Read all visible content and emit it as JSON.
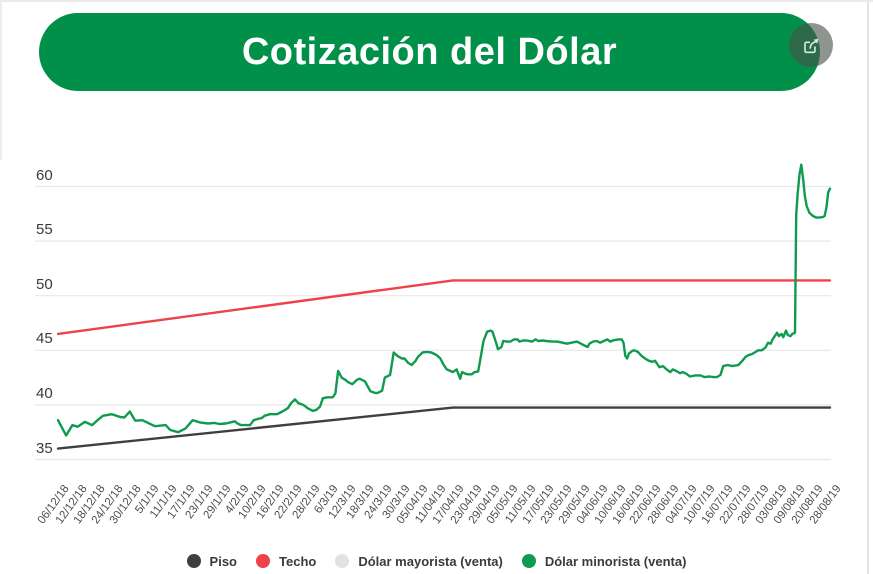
{
  "header": {
    "title": "Cotización del Dólar",
    "banner_color": "#00904A",
    "title_color": "#FFFFFF",
    "share_icon": "share-export"
  },
  "chart_data": {
    "type": "line",
    "title": "Cotización del Dólar",
    "xlabel": "",
    "ylabel": "",
    "ylim": [
      33.5,
      63
    ],
    "yticks": [
      35,
      40,
      45,
      50,
      55,
      60
    ],
    "grid": true,
    "legend_position": "bottom",
    "gridline_color": "#e7e7e7",
    "x_labels": [
      "06/12/18",
      "12/12/18",
      "18/12/18",
      "24/12/18",
      "30/12/18",
      "5/1/19",
      "11/1/19",
      "17/1/19",
      "23/1/19",
      "29/1/19",
      "4/2/19",
      "10/2/19",
      "16/2/19",
      "22/2/19",
      "28/2/19",
      "6/3/19",
      "12/3/19",
      "18/3/19",
      "24/3/19",
      "30/3/19",
      "05/04/19",
      "11/04/19",
      "17/04/19",
      "23/04/19",
      "29/04/19",
      "05/05/19",
      "11/05/19",
      "17/05/19",
      "23/05/19",
      "29/05/19",
      "04/06/19",
      "10/06/19",
      "16/06/19",
      "22/06/19",
      "28/06/19",
      "04/07/19",
      "10/07/19",
      "16/07/19",
      "22/07/19",
      "28/07/19",
      "03/08/19",
      "09/08/19",
      "20/08/19",
      "28/08/19"
    ],
    "series": [
      {
        "key": "piso",
        "name": "Piso",
        "color": "#3F3F3F",
        "points": [
          [
            0,
            36.0
          ],
          [
            22,
            39.75
          ],
          [
            43,
            39.75
          ]
        ]
      },
      {
        "key": "techo",
        "name": "Techo",
        "color": "#EE4149",
        "points": [
          [
            0,
            46.5
          ],
          [
            22,
            51.4
          ],
          [
            43,
            51.4
          ]
        ]
      },
      {
        "key": "mayorista",
        "name": "Dólar mayorista (venta)",
        "color": "#E2E2E2",
        "points": []
      },
      {
        "key": "minorista",
        "name": "Dólar minorista (venta)",
        "color": "#0F9B4E",
        "points": [
          [
            0,
            38.6
          ],
          [
            0.45,
            37.2
          ],
          [
            0.8,
            38.15
          ],
          [
            1.1,
            38.0
          ],
          [
            1.5,
            38.45
          ],
          [
            1.9,
            38.15
          ],
          [
            2.2,
            38.6
          ],
          [
            2.5,
            39.0
          ],
          [
            3.0,
            39.15
          ],
          [
            3.45,
            38.9
          ],
          [
            3.7,
            38.85
          ],
          [
            4.0,
            39.4
          ],
          [
            4.3,
            38.55
          ],
          [
            4.7,
            38.6
          ],
          [
            5.4,
            38.05
          ],
          [
            6.0,
            38.15
          ],
          [
            6.25,
            37.7
          ],
          [
            6.7,
            37.5
          ],
          [
            7.1,
            37.85
          ],
          [
            7.5,
            38.6
          ],
          [
            7.9,
            38.4
          ],
          [
            8.35,
            38.3
          ],
          [
            8.7,
            38.35
          ],
          [
            9.0,
            38.25
          ],
          [
            9.35,
            38.3
          ],
          [
            9.85,
            38.5
          ],
          [
            10.0,
            38.3
          ],
          [
            10.2,
            38.15
          ],
          [
            10.7,
            38.15
          ],
          [
            10.9,
            38.6
          ],
          [
            11.1,
            38.7
          ],
          [
            11.35,
            38.8
          ],
          [
            11.5,
            39.0
          ],
          [
            11.8,
            39.15
          ],
          [
            12.2,
            39.15
          ],
          [
            12.5,
            39.4
          ],
          [
            12.8,
            39.7
          ],
          [
            13.0,
            40.2
          ],
          [
            13.2,
            40.5
          ],
          [
            13.4,
            40.15
          ],
          [
            13.6,
            40.05
          ],
          [
            13.75,
            39.9
          ],
          [
            13.9,
            39.7
          ],
          [
            14.2,
            39.45
          ],
          [
            14.4,
            39.55
          ],
          [
            14.6,
            39.85
          ],
          [
            14.75,
            40.6
          ],
          [
            15.0,
            40.7
          ],
          [
            15.3,
            40.7
          ],
          [
            15.45,
            41.05
          ],
          [
            15.6,
            43.1
          ],
          [
            15.8,
            42.5
          ],
          [
            16.0,
            42.3
          ],
          [
            16.15,
            42.1
          ],
          [
            16.4,
            41.9
          ],
          [
            16.65,
            42.3
          ],
          [
            16.8,
            42.4
          ],
          [
            17.1,
            42.15
          ],
          [
            17.4,
            41.25
          ],
          [
            17.65,
            41.1
          ],
          [
            17.8,
            41.1
          ],
          [
            18.05,
            41.3
          ],
          [
            18.2,
            42.5
          ],
          [
            18.5,
            42.75
          ],
          [
            18.7,
            44.8
          ],
          [
            18.9,
            44.5
          ],
          [
            19.15,
            44.25
          ],
          [
            19.3,
            44.25
          ],
          [
            19.5,
            43.85
          ],
          [
            19.7,
            43.65
          ],
          [
            19.9,
            44.0
          ],
          [
            20.05,
            44.4
          ],
          [
            20.3,
            44.8
          ],
          [
            20.55,
            44.85
          ],
          [
            20.8,
            44.8
          ],
          [
            21.1,
            44.55
          ],
          [
            21.3,
            44.25
          ],
          [
            21.45,
            43.75
          ],
          [
            21.65,
            43.25
          ],
          [
            21.8,
            43.15
          ],
          [
            22.0,
            43.0
          ],
          [
            22.2,
            43.25
          ],
          [
            22.4,
            42.4
          ],
          [
            22.5,
            43.0
          ],
          [
            22.7,
            42.85
          ],
          [
            22.85,
            42.8
          ],
          [
            23.05,
            42.8
          ],
          [
            23.2,
            43.0
          ],
          [
            23.4,
            43.05
          ],
          [
            23.5,
            43.95
          ],
          [
            23.7,
            45.85
          ],
          [
            23.9,
            46.7
          ],
          [
            24.1,
            46.8
          ],
          [
            24.2,
            46.7
          ],
          [
            24.4,
            45.7
          ],
          [
            24.5,
            45.1
          ],
          [
            24.7,
            45.3
          ],
          [
            24.8,
            45.85
          ],
          [
            25.0,
            45.8
          ],
          [
            25.2,
            45.8
          ],
          [
            25.4,
            46.0
          ],
          [
            25.6,
            46.0
          ],
          [
            25.7,
            45.8
          ],
          [
            25.9,
            45.9
          ],
          [
            26.1,
            45.9
          ],
          [
            26.4,
            45.8
          ],
          [
            26.6,
            46.0
          ],
          [
            26.75,
            45.85
          ],
          [
            27.0,
            45.9
          ],
          [
            27.2,
            45.85
          ],
          [
            27.5,
            45.8
          ],
          [
            27.8,
            45.8
          ],
          [
            28.1,
            45.7
          ],
          [
            28.35,
            45.6
          ],
          [
            28.6,
            45.7
          ],
          [
            28.9,
            45.8
          ],
          [
            29.25,
            45.5
          ],
          [
            29.5,
            45.3
          ],
          [
            29.6,
            45.6
          ],
          [
            29.8,
            45.8
          ],
          [
            30.0,
            45.85
          ],
          [
            30.2,
            45.7
          ],
          [
            30.4,
            45.85
          ],
          [
            30.6,
            46.0
          ],
          [
            30.75,
            45.8
          ],
          [
            30.9,
            45.9
          ],
          [
            31.2,
            46.0
          ],
          [
            31.4,
            46.0
          ],
          [
            31.5,
            45.7
          ],
          [
            31.6,
            44.5
          ],
          [
            31.7,
            44.25
          ],
          [
            31.8,
            44.7
          ],
          [
            32.0,
            44.95
          ],
          [
            32.1,
            45.0
          ],
          [
            32.3,
            44.85
          ],
          [
            32.5,
            44.5
          ],
          [
            32.7,
            44.25
          ],
          [
            32.9,
            44.05
          ],
          [
            33.1,
            43.95
          ],
          [
            33.25,
            44.05
          ],
          [
            33.4,
            43.7
          ],
          [
            33.5,
            43.45
          ],
          [
            33.7,
            43.55
          ],
          [
            33.9,
            43.25
          ],
          [
            34.1,
            43.0
          ],
          [
            34.25,
            43.25
          ],
          [
            34.5,
            43.05
          ],
          [
            34.65,
            42.9
          ],
          [
            34.8,
            43.0
          ],
          [
            35.0,
            42.85
          ],
          [
            35.2,
            42.6
          ],
          [
            35.5,
            42.7
          ],
          [
            35.8,
            42.7
          ],
          [
            36.0,
            42.55
          ],
          [
            36.3,
            42.6
          ],
          [
            36.5,
            42.55
          ],
          [
            36.7,
            42.55
          ],
          [
            36.9,
            42.75
          ],
          [
            37.05,
            43.55
          ],
          [
            37.3,
            43.65
          ],
          [
            37.55,
            43.55
          ],
          [
            37.9,
            43.65
          ],
          [
            38.1,
            44.0
          ],
          [
            38.3,
            44.4
          ],
          [
            38.45,
            44.55
          ],
          [
            38.65,
            44.65
          ],
          [
            38.8,
            44.8
          ],
          [
            39.0,
            45.0
          ],
          [
            39.2,
            45.0
          ],
          [
            39.4,
            45.25
          ],
          [
            39.55,
            45.7
          ],
          [
            39.7,
            45.6
          ],
          [
            39.8,
            46.0
          ],
          [
            40.05,
            46.6
          ],
          [
            40.15,
            46.3
          ],
          [
            40.3,
            46.5
          ],
          [
            40.4,
            46.2
          ],
          [
            40.55,
            46.8
          ],
          [
            40.65,
            46.4
          ],
          [
            40.8,
            46.3
          ],
          [
            40.9,
            46.5
          ],
          [
            41.05,
            46.6
          ],
          [
            41.12,
            57.4
          ],
          [
            41.2,
            59.4
          ],
          [
            41.3,
            61.1
          ],
          [
            41.4,
            62.0
          ],
          [
            41.5,
            60.7
          ],
          [
            41.6,
            59.1
          ],
          [
            41.7,
            58.2
          ],
          [
            41.85,
            57.6
          ],
          [
            42.05,
            57.3
          ],
          [
            42.25,
            57.15
          ],
          [
            42.4,
            57.15
          ],
          [
            42.6,
            57.2
          ],
          [
            42.7,
            57.3
          ],
          [
            42.8,
            58.05
          ],
          [
            42.9,
            59.45
          ],
          [
            43.0,
            59.8
          ]
        ]
      }
    ]
  }
}
